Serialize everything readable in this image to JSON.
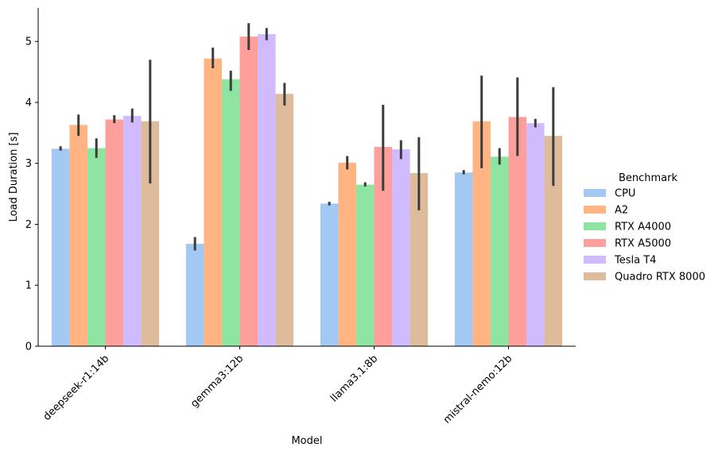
{
  "chart_data": {
    "type": "bar",
    "xlabel": "Model",
    "ylabel": "Load Duration [s]",
    "categories": [
      "deepseek-r1:14b",
      "gemma3:12b",
      "llama3.1:8b",
      "mistral-nemo:12b"
    ],
    "ylim": [
      0,
      5.55
    ],
    "yticks": [
      0,
      1,
      2,
      3,
      4,
      5
    ],
    "legend": {
      "title": "Benchmark",
      "placement": "right"
    },
    "series": [
      {
        "name": "CPU",
        "color": "#a1c9f4",
        "values": [
          3.24,
          1.68,
          2.34,
          2.85
        ],
        "err_low": [
          3.21,
          1.57,
          2.31,
          2.82
        ],
        "err_high": [
          3.28,
          1.79,
          2.37,
          2.89
        ]
      },
      {
        "name": "A2",
        "color": "#ffb482",
        "values": [
          3.63,
          4.72,
          3.01,
          3.69
        ],
        "err_low": [
          3.45,
          4.56,
          2.9,
          2.92
        ],
        "err_high": [
          3.8,
          4.9,
          3.12,
          4.44
        ]
      },
      {
        "name": "RTX A4000",
        "color": "#8de5a1",
        "values": [
          3.25,
          4.38,
          2.65,
          3.11
        ],
        "err_low": [
          3.09,
          4.19,
          2.62,
          2.98
        ],
        "err_high": [
          3.41,
          4.52,
          2.69,
          3.25
        ]
      },
      {
        "name": "RTX A5000",
        "color": "#ff9f9b",
        "values": [
          3.72,
          5.08,
          3.27,
          3.76
        ],
        "err_low": [
          3.66,
          4.86,
          2.55,
          3.12
        ],
        "err_high": [
          3.79,
          5.3,
          3.96,
          4.41
        ]
      },
      {
        "name": "Tesla T4",
        "color": "#d0bbff",
        "values": [
          3.78,
          5.12,
          3.23,
          3.66
        ],
        "err_low": [
          3.67,
          5.02,
          3.07,
          3.59
        ],
        "err_high": [
          3.9,
          5.22,
          3.38,
          3.73
        ]
      },
      {
        "name": "Quadro RTX 8000",
        "color": "#debb9b",
        "values": [
          3.69,
          4.14,
          2.84,
          3.45
        ],
        "err_low": [
          2.67,
          3.95,
          2.23,
          2.63
        ],
        "err_high": [
          4.7,
          4.32,
          3.43,
          4.25
        ]
      }
    ]
  }
}
